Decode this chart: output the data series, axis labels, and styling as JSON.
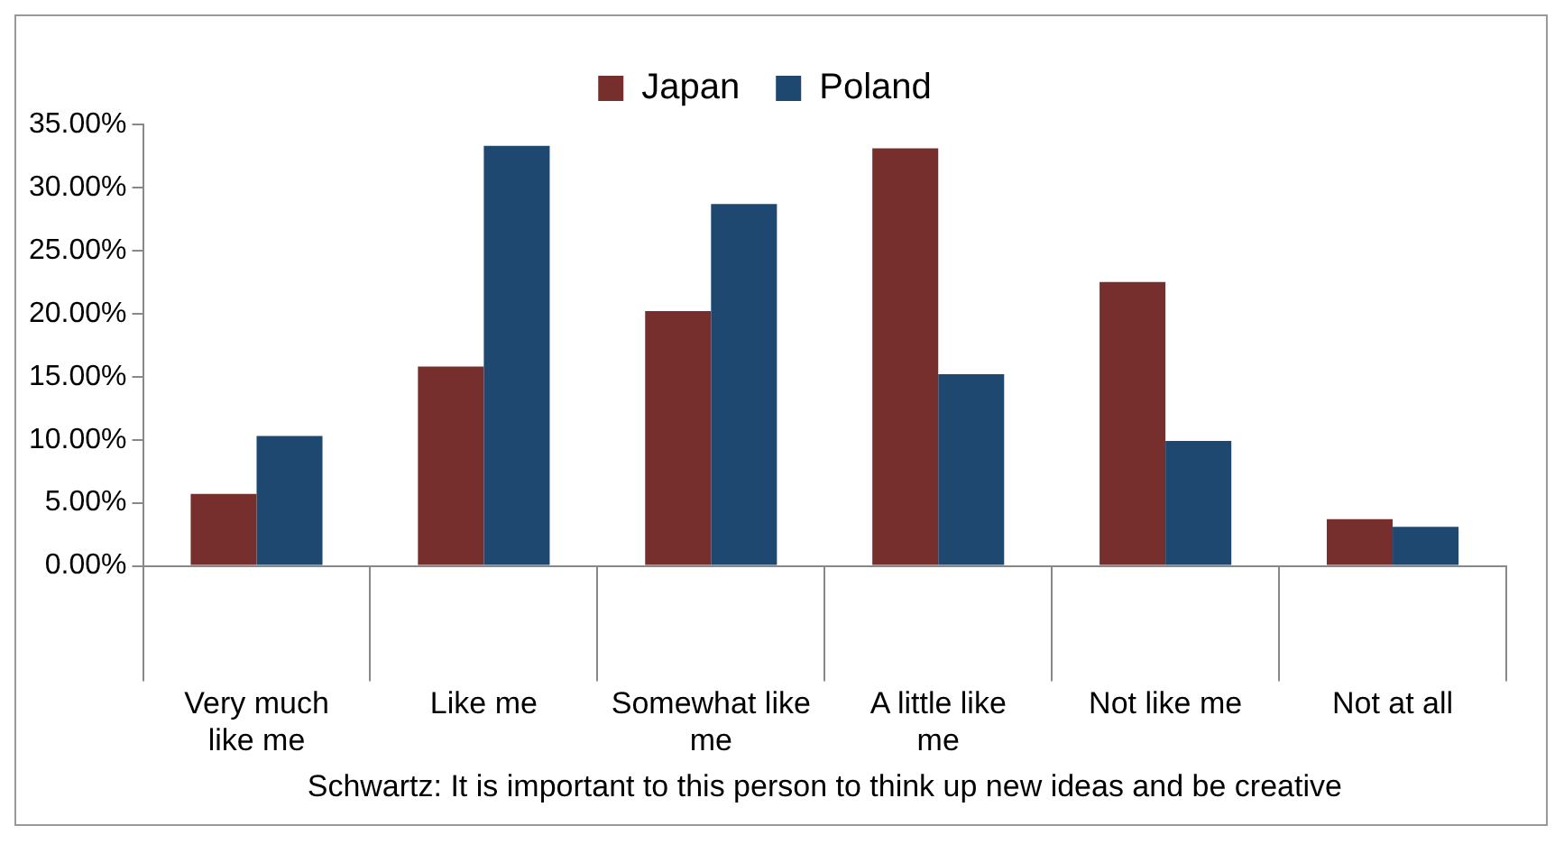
{
  "chart_data": {
    "type": "bar",
    "xlabel": "Schwartz: It is important to this person to think up new ideas and be creative",
    "categories": [
      "Very much like me",
      "Like me",
      "Somewhat like me",
      "A little like me",
      "Not like me",
      "Not at all"
    ],
    "series": [
      {
        "name": "Japan",
        "color": "#772f2d",
        "values": [
          5.7,
          15.8,
          20.2,
          33.1,
          22.5,
          3.7
        ]
      },
      {
        "name": "Poland",
        "color": "#1f4871",
        "values": [
          10.3,
          33.3,
          28.7,
          15.2,
          9.9,
          3.1
        ]
      }
    ],
    "ylim": [
      0,
      35
    ],
    "yticks": [
      {
        "value": 0,
        "label": "0.00%"
      },
      {
        "value": 5,
        "label": "5.00%"
      },
      {
        "value": 10,
        "label": "10.00%"
      },
      {
        "value": 15,
        "label": "15.00%"
      },
      {
        "value": 20,
        "label": "20.00%"
      },
      {
        "value": 25,
        "label": "25.00%"
      },
      {
        "value": 30,
        "label": "30.00%"
      },
      {
        "value": 35,
        "label": "35.00%"
      }
    ],
    "grid": false,
    "legend": "top"
  }
}
